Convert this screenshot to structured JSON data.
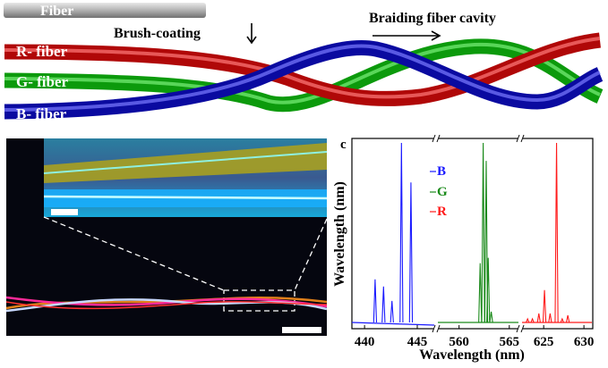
{
  "panel_a": {
    "fiber_label": "Fiber",
    "brush_label": "Brush-coating",
    "braid_label": "Braiding fiber cavity",
    "r_label": "R- fiber",
    "g_label": "G- fiber",
    "b_label": "B- fiber",
    "colors": {
      "r": "#e01010",
      "g": "#18d018",
      "b": "#1a1ad8",
      "gray": "#a8a8a8"
    }
  },
  "panel_b": {
    "description_colors": {
      "background": "#05060f",
      "inset": "#1aa6d8"
    }
  },
  "chart_data": {
    "type": "line",
    "panel_label": "c",
    "xlabel": "Wavelength (nm)",
    "ylabel": "Wavelength (nm)",
    "broken_x_axis": true,
    "segments": [
      {
        "xlim": [
          438.8,
          446.7
        ],
        "ticks": [
          "440",
          "445"
        ],
        "tick_values": [
          440,
          445
        ]
      },
      {
        "xlim": [
          557.8,
          566.0
        ],
        "ticks": [
          "560",
          "565"
        ],
        "tick_values": [
          560,
          565
        ]
      },
      {
        "xlim": [
          622.2,
          631.1
        ],
        "ticks": [
          "625",
          "630"
        ],
        "tick_values": [
          625,
          630
        ]
      }
    ],
    "ylim": [
      0,
      1.05
    ],
    "legend_placement": "top-left",
    "series": [
      {
        "name": "B",
        "color": "#1a1aff",
        "segment": 0,
        "peaks_x": [
          441.0,
          441.8,
          442.6,
          443.5,
          444.4
        ],
        "peaks_y": [
          0.24,
          0.2,
          0.12,
          1.0,
          0.78
        ]
      },
      {
        "name": "G",
        "color": "#1a8a1a",
        "segment": 1,
        "peaks_x": [
          562.1,
          562.4,
          562.7,
          562.9,
          563.2
        ],
        "peaks_y": [
          0.33,
          1.0,
          0.9,
          0.36,
          0.06
        ]
      },
      {
        "name": "R",
        "color": "#ff1a1a",
        "segment": 2,
        "peaks_x": [
          623.0,
          623.6,
          624.4,
          625.1,
          625.8,
          626.6,
          627.3,
          628.0
        ],
        "peaks_y": [
          0.02,
          0.02,
          0.05,
          0.18,
          0.05,
          1.0,
          0.02,
          0.04
        ]
      }
    ]
  }
}
